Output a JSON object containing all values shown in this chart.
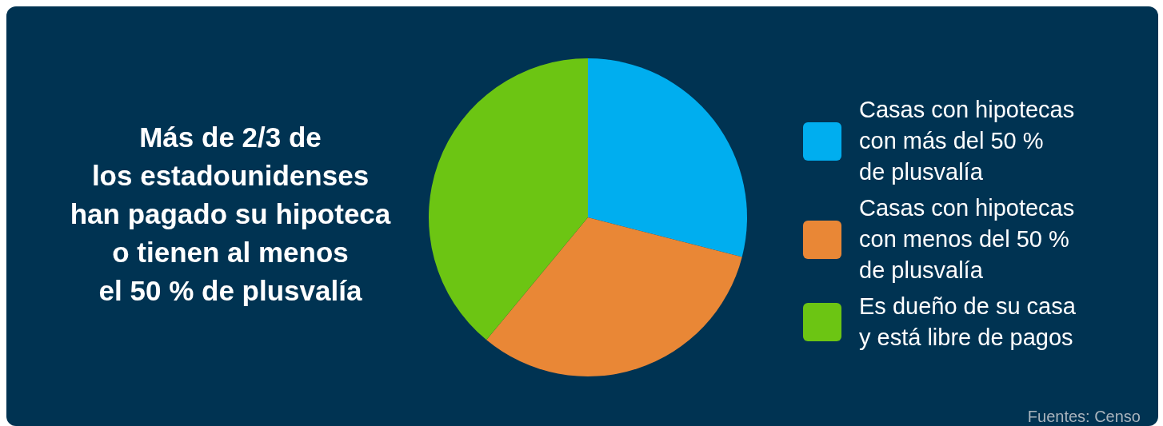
{
  "chart_data": {
    "type": "pie",
    "title": "Más de 2/3 de\nlos estadounidenses\nhan pagado su hipoteca\no tienen al menos\nel 50 % de plusvalía",
    "categories": [
      "Casas con hipotecas\ncon más del 50 %\nde plusvalía",
      "Casas con hipotecas\ncon menos del 50 %\nde plusvalía",
      "Es dueño de su casa\ny está libre de pagos"
    ],
    "values": [
      29,
      32,
      39
    ],
    "colors": [
      "#00aeef",
      "#e98736",
      "#6cc513"
    ],
    "legend": "right",
    "annotations": [
      "Fuentes: Censo"
    ]
  }
}
